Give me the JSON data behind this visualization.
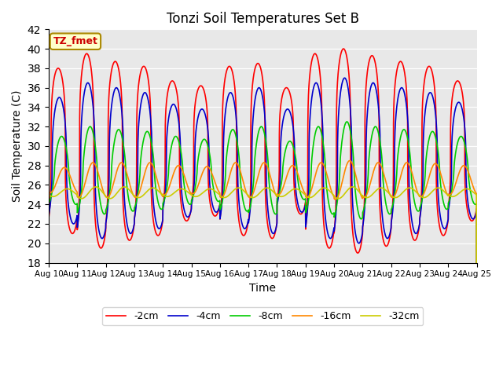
{
  "title": "Tonzi Soil Temperatures Set B",
  "xlabel": "Time",
  "ylabel": "Soil Temperature (C)",
  "ylim": [
    18,
    42
  ],
  "xlim": [
    0,
    15
  ],
  "yticks": [
    18,
    20,
    22,
    24,
    26,
    28,
    30,
    32,
    34,
    36,
    38,
    40,
    42
  ],
  "xtick_labels": [
    "Aug 10",
    "Aug 11",
    "Aug 12",
    "Aug 13",
    "Aug 14",
    "Aug 15",
    "Aug 16",
    "Aug 17",
    "Aug 18",
    "Aug 19",
    "Aug 20",
    "Aug 21",
    "Aug 22",
    "Aug 23",
    "Aug 24",
    "Aug 25"
  ],
  "legend_label": "TZ_fmet",
  "colors": {
    "-2cm": "#ff0000",
    "-4cm": "#0000cc",
    "-8cm": "#00cc00",
    "-16cm": "#ff8800",
    "-32cm": "#cccc00"
  },
  "bg_color": "#e8e8e8",
  "fig_bg": "#ffffff",
  "linewidth": 1.2,
  "mean_2cm": 29.5,
  "mean_4cm": 28.5,
  "mean_8cm": 27.5,
  "mean_16cm": 26.5,
  "mean_32cm": 25.2,
  "amps_2cm": [
    8.5,
    10.0,
    9.2,
    8.7,
    7.2,
    6.7,
    8.7,
    9.0,
    6.5,
    10.0,
    10.5,
    9.8,
    9.2,
    8.7,
    7.2
  ],
  "amps_4cm": [
    6.5,
    8.0,
    7.5,
    7.0,
    5.8,
    5.3,
    7.0,
    7.5,
    5.3,
    8.0,
    8.5,
    8.0,
    7.5,
    7.0,
    6.0
  ],
  "amps_8cm": [
    3.5,
    4.5,
    4.2,
    4.0,
    3.5,
    3.2,
    4.2,
    4.5,
    3.0,
    4.5,
    5.0,
    4.5,
    4.2,
    4.0,
    3.5
  ],
  "amps_16cm": [
    1.3,
    1.8,
    1.8,
    1.8,
    1.5,
    1.4,
    1.8,
    1.8,
    1.5,
    1.8,
    2.0,
    1.8,
    1.8,
    1.7,
    1.5
  ],
  "amps_32cm": [
    0.4,
    0.6,
    0.6,
    0.5,
    0.4,
    0.4,
    0.5,
    0.5,
    0.4,
    0.5,
    0.6,
    0.5,
    0.5,
    0.5,
    0.4
  ],
  "phase_2cm": 0.33,
  "phase_4cm": 0.37,
  "phase_8cm": 0.45,
  "phase_16cm": 0.55,
  "phase_32cm": 0.65,
  "sharpness_2cm": 3.5,
  "sharpness_4cm": 2.5,
  "sharpness_8cm": 1.5,
  "sharpness_16cm": 1.0,
  "sharpness_32cm": 1.0
}
